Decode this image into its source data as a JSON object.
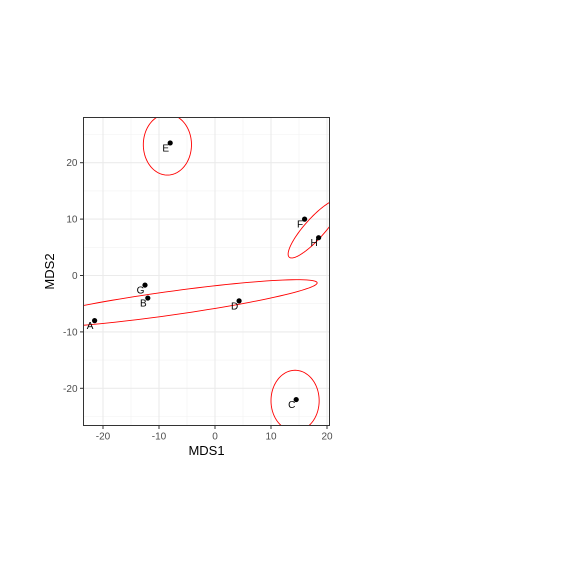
{
  "chart_data": {
    "type": "scatter",
    "title": "",
    "xlabel": "MDS1",
    "ylabel": "MDS2",
    "xlim": [
      -23.5,
      20.5
    ],
    "ylim": [
      -26.5,
      28
    ],
    "x_ticks": [
      -20,
      -10,
      0,
      10,
      20
    ],
    "x_tick_labels": [
      "-20",
      "-10",
      "0",
      "10",
      "20"
    ],
    "y_ticks": [
      -20,
      -10,
      0,
      10,
      20
    ],
    "y_tick_labels": [
      "-20",
      "-10",
      "0",
      "10",
      "20"
    ],
    "grid": true,
    "point_color": "#000000",
    "ellipse_color": "#ff0000",
    "points": [
      {
        "label": "A",
        "x": -21.5,
        "y": -8.0
      },
      {
        "label": "B",
        "x": -12.0,
        "y": -4.0
      },
      {
        "label": "C",
        "x": 14.5,
        "y": -22.0
      },
      {
        "label": "D",
        "x": 4.3,
        "y": -4.5
      },
      {
        "label": "E",
        "x": -8.0,
        "y": 23.5
      },
      {
        "label": "F",
        "x": 16.0,
        "y": 10.0
      },
      {
        "label": "G",
        "x": -12.5,
        "y": -1.7
      },
      {
        "label": "H",
        "x": 18.5,
        "y": 6.7
      }
    ],
    "ellipses": [
      {
        "group": [
          "A",
          "B",
          "D",
          "G"
        ],
        "cx": -8.5,
        "cy": -5.0,
        "rx": 27.0,
        "ry": 2.1,
        "angle": 7.9
      },
      {
        "group": [
          "E"
        ],
        "cx": -8.5,
        "cy": 23.2,
        "rx": 4.3,
        "ry": 5.4,
        "angle": 0
      },
      {
        "group": [
          "F",
          "H"
        ],
        "cx": 17.8,
        "cy": 8.3,
        "rx": 6.8,
        "ry": 1.8,
        "angle": 48
      },
      {
        "group": [
          "C"
        ],
        "cx": 14.3,
        "cy": -22.2,
        "rx": 4.3,
        "ry": 5.4,
        "angle": 0
      }
    ]
  }
}
